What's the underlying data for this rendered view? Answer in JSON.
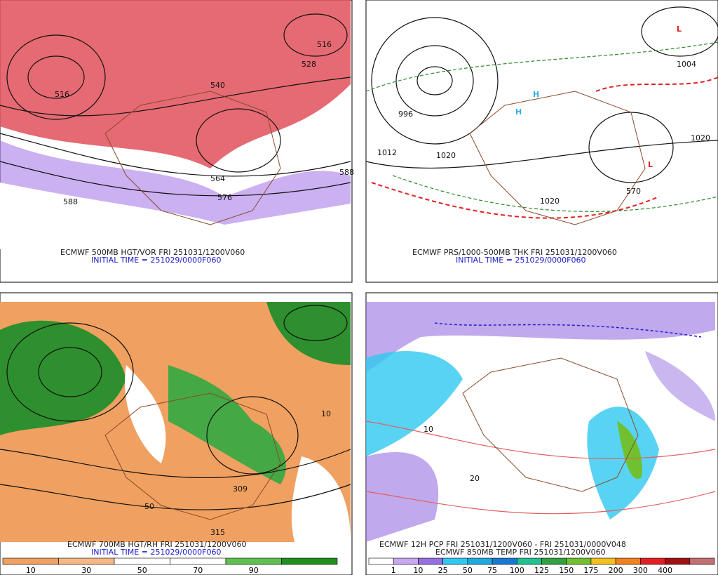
{
  "panels": [
    {
      "caption": "ECMWF 500MB HGT/VOR FRI 251031/1200V060",
      "initial_time": "INITIAL TIME = 251029/0000F060",
      "map_labels": [
        "516",
        "528",
        "540",
        "516",
        "564",
        "576",
        "588",
        "588"
      ]
    },
    {
      "caption": "ECMWF PRS/1000-500MB THK FRI 251031/1200V060",
      "initial_time": "INITIAL TIME = 251029/0000F060",
      "map_labels": [
        "L",
        "L",
        "H",
        "H",
        "1004",
        "1012",
        "1020",
        "1020",
        "1020",
        "570",
        "996"
      ]
    },
    {
      "caption": "ECMWF 700MB HGT/RH FRI 251031/1200V060",
      "initial_time": "INITIAL TIME = 251029/0000F060",
      "map_labels": [
        "309",
        "315",
        "10",
        "50"
      ],
      "colorbar": {
        "colors": [
          "#f0a060",
          "#f5b884",
          "#ffffff",
          "#ffffff",
          "#5fc04e",
          "#1f8f1f"
        ],
        "labels": [
          "10",
          "30",
          "50",
          "70",
          "90"
        ]
      }
    },
    {
      "caption": "ECMWF 12H PCP FRI 251031/1200V060 - FRI 251031/0000V048",
      "initial_time": "ECMWF 850MB TEMP FRI 251031/1200V060",
      "map_labels": [
        "20",
        "10"
      ],
      "colorbar": {
        "colors": [
          "#ffffff",
          "#c8a8f0",
          "#9670e0",
          "#30c8f0",
          "#20a8e0",
          "#1878d0",
          "#20c090",
          "#30a040",
          "#70c030",
          "#f0c020",
          "#f08020",
          "#e02020",
          "#a01010",
          "#c07070"
        ],
        "labels": [
          "1",
          "10",
          "25",
          "50",
          "75",
          "100",
          "125",
          "150",
          "175",
          "200",
          "300",
          "400"
        ]
      }
    }
  ]
}
